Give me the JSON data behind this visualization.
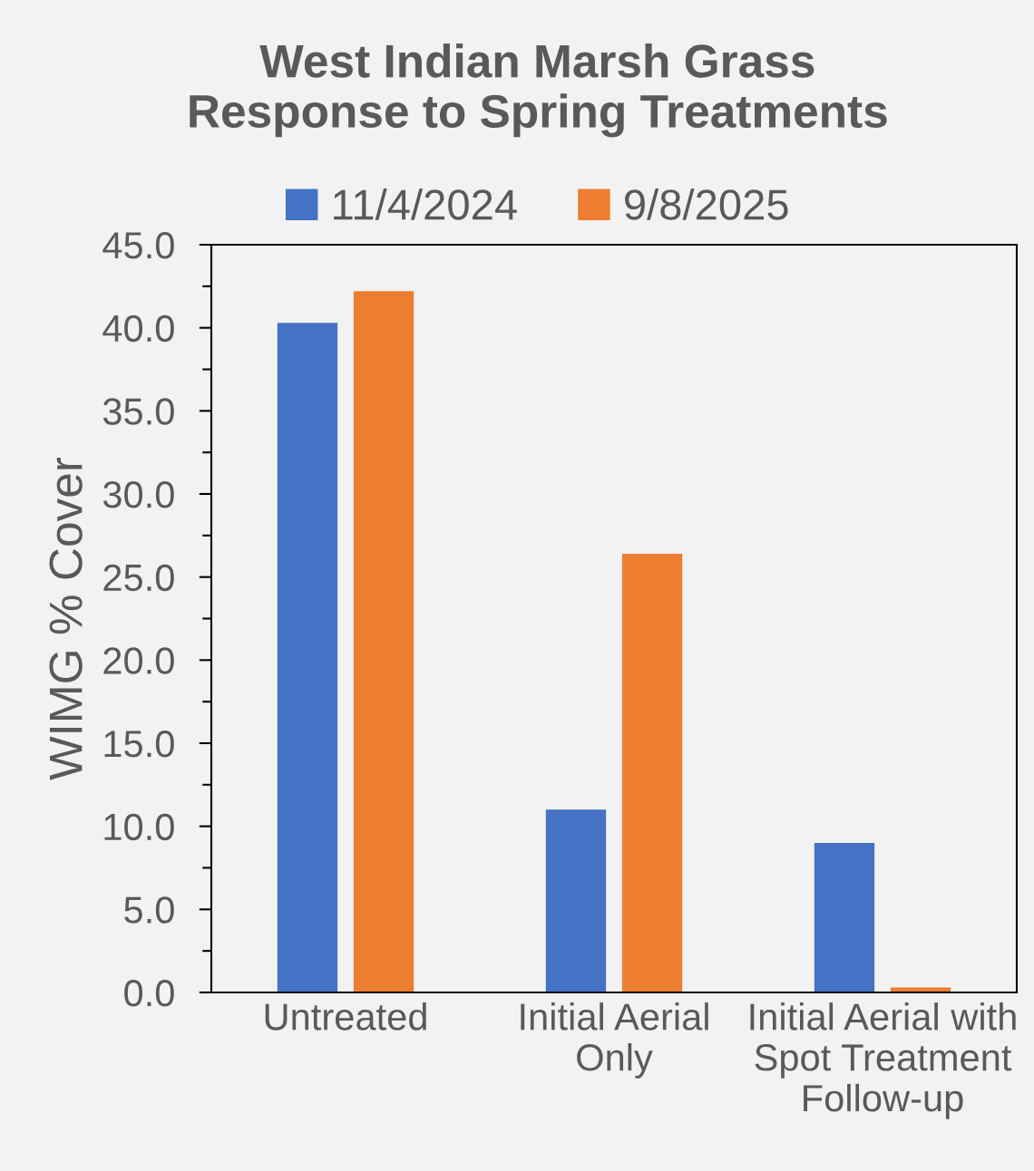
{
  "chart_data": {
    "type": "bar",
    "title": "West Indian Marsh Grass Response to Spring Treatments",
    "ylabel": "WIMG % Cover",
    "categories": [
      "Untreated",
      "Initial Aerial Only",
      "Initial Aerial with Spot Treatment Follow-up"
    ],
    "series": [
      {
        "name": "11/4/2024",
        "color": "#4472c4",
        "values": [
          40.3,
          11.0,
          9.0
        ]
      },
      {
        "name": "9/8/2025",
        "color": "#ed7d31",
        "values": [
          42.2,
          26.4,
          0.3
        ]
      }
    ],
    "ylim": [
      0,
      45
    ],
    "yticks": [
      {
        "value": 0,
        "label": "0.0"
      },
      {
        "value": 2.5,
        "label": null
      },
      {
        "value": 5,
        "label": "5.0"
      },
      {
        "value": 7.5,
        "label": null
      },
      {
        "value": 10,
        "label": "10.0"
      },
      {
        "value": 12.5,
        "label": null
      },
      {
        "value": 15,
        "label": "15.0"
      },
      {
        "value": 17.5,
        "label": null
      },
      {
        "value": 20,
        "label": "20.0"
      },
      {
        "value": 22.5,
        "label": null
      },
      {
        "value": 25,
        "label": "25.0"
      },
      {
        "value": 27.5,
        "label": null
      },
      {
        "value": 30,
        "label": "30.0"
      },
      {
        "value": 32.5,
        "label": null
      },
      {
        "value": 35,
        "label": "35.0"
      },
      {
        "value": 37.5,
        "label": null
      },
      {
        "value": 40,
        "label": "40.0"
      },
      {
        "value": 42.5,
        "label": null
      },
      {
        "value": 45,
        "label": "45.0"
      }
    ],
    "legend": "top"
  }
}
